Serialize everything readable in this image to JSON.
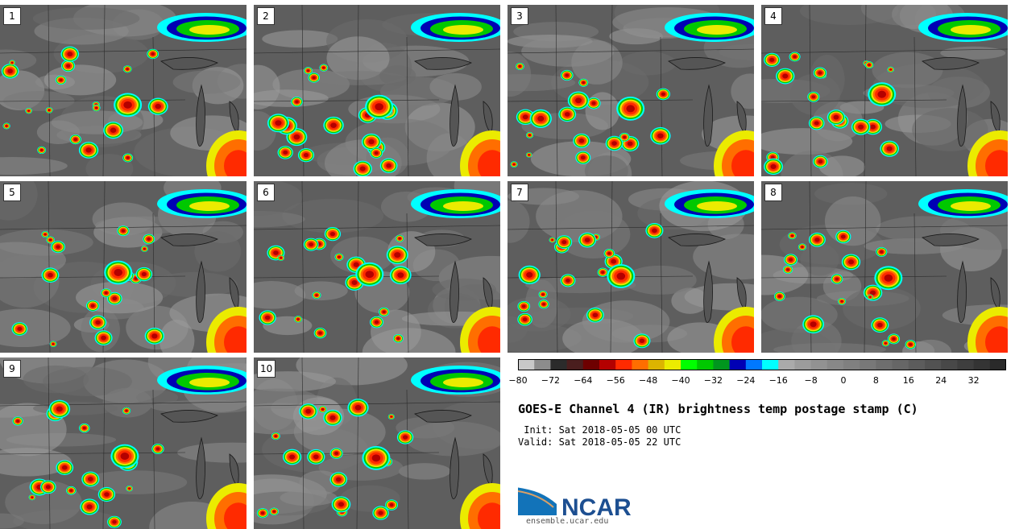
{
  "panels": [
    {
      "label": "1"
    },
    {
      "label": "2"
    },
    {
      "label": "3"
    },
    {
      "label": "4"
    },
    {
      "label": "5"
    },
    {
      "label": "6"
    },
    {
      "label": "7"
    },
    {
      "label": "8"
    },
    {
      "label": "9"
    },
    {
      "label": "10"
    }
  ],
  "colorbar": {
    "colors": [
      "#c8c8c8",
      "#8c8c8c",
      "#2b2b2b",
      "#4a1e1e",
      "#6e0000",
      "#b40000",
      "#ff2a00",
      "#ff6e00",
      "#dcb400",
      "#ebeb00",
      "#00ff00",
      "#00c800",
      "#00961e",
      "#0000b4",
      "#0078ff",
      "#00ffff",
      "#aaaaaa",
      "#9c9c9c",
      "#929292",
      "#888888",
      "#808080",
      "#787878",
      "#6e6e6e",
      "#666666",
      "#5c5c5c",
      "#525252",
      "#484848",
      "#3e3e3e",
      "#343434",
      "#2a2a2a"
    ],
    "ticks": [
      "−80",
      "−72",
      "−64",
      "−56",
      "−48",
      "−40",
      "−32",
      "−24",
      "−16",
      "−8",
      "0",
      "8",
      "16",
      "24",
      "32"
    ]
  },
  "title": "GOES-E Channel 4 (IR) brightness temp postage stamp (C)",
  "init": " Init: Sat 2018-05-05 00 UTC",
  "valid": "Valid: Sat 2018-05-05 22 UTC",
  "logo_text": "NCAR",
  "site": "ensemble.ucar.edu"
}
